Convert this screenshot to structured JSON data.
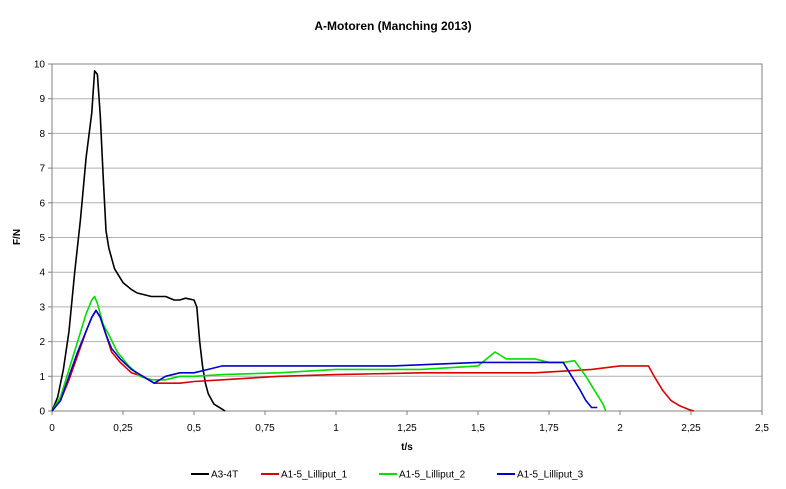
{
  "chart_data": {
    "type": "line",
    "title": "A-Motoren (Manching 2013)",
    "xlabel": "t/s",
    "ylabel": "F/N",
    "xlim": [
      0,
      2.5
    ],
    "ylim": [
      0,
      10
    ],
    "xticks": [
      0,
      0.25,
      0.5,
      0.75,
      1,
      1.25,
      1.5,
      1.75,
      2,
      2.25,
      2.5
    ],
    "xtick_labels": [
      "0",
      "0,25",
      "0,5",
      "0,75",
      "1",
      "1,25",
      "1,5",
      "1,75",
      "2",
      "2,25",
      "2,5"
    ],
    "yticks": [
      0,
      1,
      2,
      3,
      4,
      5,
      6,
      7,
      8,
      9,
      10
    ],
    "ytick_labels": [
      "0",
      "1",
      "2",
      "3",
      "4",
      "5",
      "6",
      "7",
      "8",
      "9",
      "10"
    ],
    "grid": "horizontal",
    "legend_position": "bottom",
    "series": [
      {
        "name": "A3-4T",
        "color": "#000000",
        "x": [
          0,
          0.02,
          0.04,
          0.06,
          0.08,
          0.1,
          0.12,
          0.14,
          0.15,
          0.16,
          0.17,
          0.18,
          0.19,
          0.2,
          0.22,
          0.25,
          0.28,
          0.3,
          0.35,
          0.4,
          0.43,
          0.45,
          0.47,
          0.5,
          0.51,
          0.52,
          0.53,
          0.54,
          0.55,
          0.57,
          0.6,
          0.61
        ],
        "y": [
          0,
          0.4,
          1.2,
          2.3,
          4.0,
          5.5,
          7.3,
          8.6,
          9.8,
          9.7,
          8.5,
          6.8,
          5.2,
          4.7,
          4.1,
          3.7,
          3.5,
          3.4,
          3.3,
          3.3,
          3.2,
          3.2,
          3.25,
          3.2,
          3.0,
          2.0,
          1.3,
          0.8,
          0.5,
          0.2,
          0.05,
          0
        ]
      },
      {
        "name": "A1-5_Lilliput_1",
        "color": "#dd0000",
        "x": [
          0,
          0.03,
          0.06,
          0.09,
          0.12,
          0.14,
          0.155,
          0.17,
          0.19,
          0.21,
          0.24,
          0.28,
          0.32,
          0.36,
          0.4,
          0.45,
          0.5,
          0.6,
          0.8,
          1.0,
          1.3,
          1.5,
          1.7,
          1.9,
          2.0,
          2.1,
          2.12,
          2.15,
          2.18,
          2.21,
          2.24,
          2.26
        ],
        "y": [
          0,
          0.3,
          0.9,
          1.6,
          2.3,
          2.7,
          2.9,
          2.7,
          2.2,
          1.7,
          1.4,
          1.1,
          1.0,
          0.8,
          0.8,
          0.8,
          0.85,
          0.9,
          1.0,
          1.05,
          1.1,
          1.1,
          1.1,
          1.2,
          1.3,
          1.3,
          1.0,
          0.6,
          0.3,
          0.15,
          0.05,
          0
        ]
      },
      {
        "name": "A1-5_Lilliput_2",
        "color": "#00dd00",
        "x": [
          0,
          0.03,
          0.06,
          0.09,
          0.12,
          0.14,
          0.15,
          0.16,
          0.18,
          0.2,
          0.23,
          0.27,
          0.31,
          0.35,
          0.4,
          0.45,
          0.5,
          0.6,
          0.8,
          1.0,
          1.3,
          1.5,
          1.56,
          1.58,
          1.6,
          1.7,
          1.75,
          1.8,
          1.84,
          1.88,
          1.91,
          1.94,
          1.95
        ],
        "y": [
          0,
          0.4,
          1.2,
          2.0,
          2.8,
          3.2,
          3.3,
          3.1,
          2.5,
          2.2,
          1.7,
          1.3,
          1.0,
          0.9,
          0.9,
          1.0,
          1.0,
          1.05,
          1.1,
          1.2,
          1.2,
          1.3,
          1.7,
          1.6,
          1.5,
          1.5,
          1.4,
          1.4,
          1.45,
          1.0,
          0.6,
          0.2,
          0
        ]
      },
      {
        "name": "A1-5_Lilliput_3",
        "color": "#0000cc",
        "x": [
          0,
          0.03,
          0.06,
          0.09,
          0.12,
          0.14,
          0.155,
          0.17,
          0.19,
          0.21,
          0.24,
          0.28,
          0.32,
          0.36,
          0.4,
          0.45,
          0.5,
          0.55,
          0.6,
          0.8,
          1.0,
          1.2,
          1.5,
          1.7,
          1.8,
          1.83,
          1.86,
          1.88,
          1.9,
          1.92
        ],
        "y": [
          0,
          0.3,
          1.0,
          1.7,
          2.3,
          2.7,
          2.9,
          2.7,
          2.2,
          1.8,
          1.5,
          1.2,
          1.0,
          0.8,
          1.0,
          1.1,
          1.1,
          1.2,
          1.3,
          1.3,
          1.3,
          1.3,
          1.4,
          1.4,
          1.4,
          1.0,
          0.6,
          0.3,
          0.1,
          0.1
        ]
      }
    ]
  }
}
